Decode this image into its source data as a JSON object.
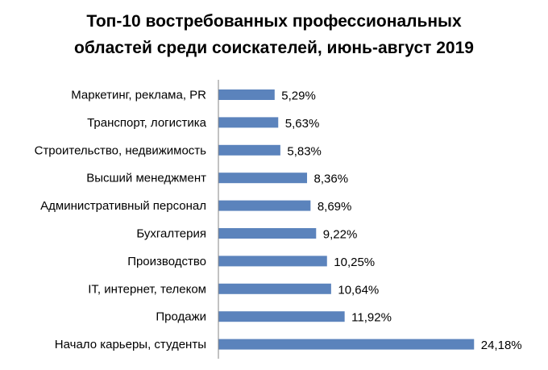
{
  "chart_data": {
    "type": "bar",
    "orientation": "horizontal",
    "title_lines": [
      "Топ-10 востребованных профессиональных",
      "областей среди соискателей, июнь-август 2019"
    ],
    "categories": [
      "Маркетинг, реклама, PR",
      "Транспорт, логистика",
      "Строительство, недвижимость",
      "Высший менеджмент",
      "Административный персонал",
      "Бухгалтерия",
      "Производство",
      "IT, интернет, телеком",
      "Продажи",
      "Начало карьеры, студенты"
    ],
    "values": [
      5.29,
      5.63,
      5.83,
      8.36,
      8.69,
      9.22,
      10.25,
      10.64,
      11.92,
      24.18
    ],
    "data_labels": [
      "5,29%",
      "5,63%",
      "5,83%",
      "8,36%",
      "8,69%",
      "9,22%",
      "10,25%",
      "10,64%",
      "11,92%",
      "24,18%"
    ],
    "unit": "%",
    "bar_color": "#5B83BC",
    "grid": false,
    "legend": "none"
  }
}
